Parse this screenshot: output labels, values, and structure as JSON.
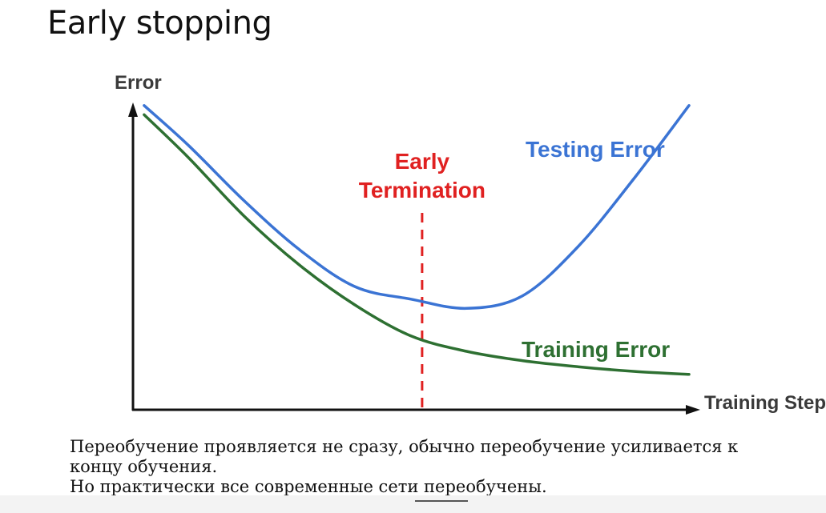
{
  "slide": {
    "title": "Early stopping"
  },
  "body": {
    "lines": [
      "Переобучение проявляется не сразу, обычно переобучение усиливается к концу обучения.",
      "Но практически все современные сети переобучены."
    ]
  },
  "colors": {
    "testing": "#3b74d4",
    "training": "#2e7032",
    "termination": "#e02121",
    "axis": "#111111"
  },
  "chart_data": {
    "type": "line",
    "title": "",
    "xlabel": "Training Steps",
    "ylabel": "Error",
    "xlim": [
      0,
      10
    ],
    "ylim": [
      0,
      10
    ],
    "grid": false,
    "legend": "none",
    "x": [
      0.2,
      1,
      2,
      3,
      4,
      5,
      6,
      7,
      8,
      9,
      10
    ],
    "series": [
      {
        "name": "Testing Error",
        "color": "#3b74d4",
        "values": [
          9.9,
          8.6,
          6.8,
          5.2,
          4.0,
          3.6,
          3.3,
          3.7,
          5.3,
          7.5,
          9.9
        ]
      },
      {
        "name": "Training Error",
        "color": "#2e7032",
        "values": [
          9.6,
          8.2,
          6.3,
          4.7,
          3.4,
          2.4,
          1.9,
          1.6,
          1.4,
          1.25,
          1.15
        ]
      }
    ],
    "annotations": [
      {
        "label_lines": [
          "Early",
          "Termination"
        ],
        "x": 5.2,
        "color": "#e02121",
        "style": "dashed-vertical"
      }
    ]
  }
}
